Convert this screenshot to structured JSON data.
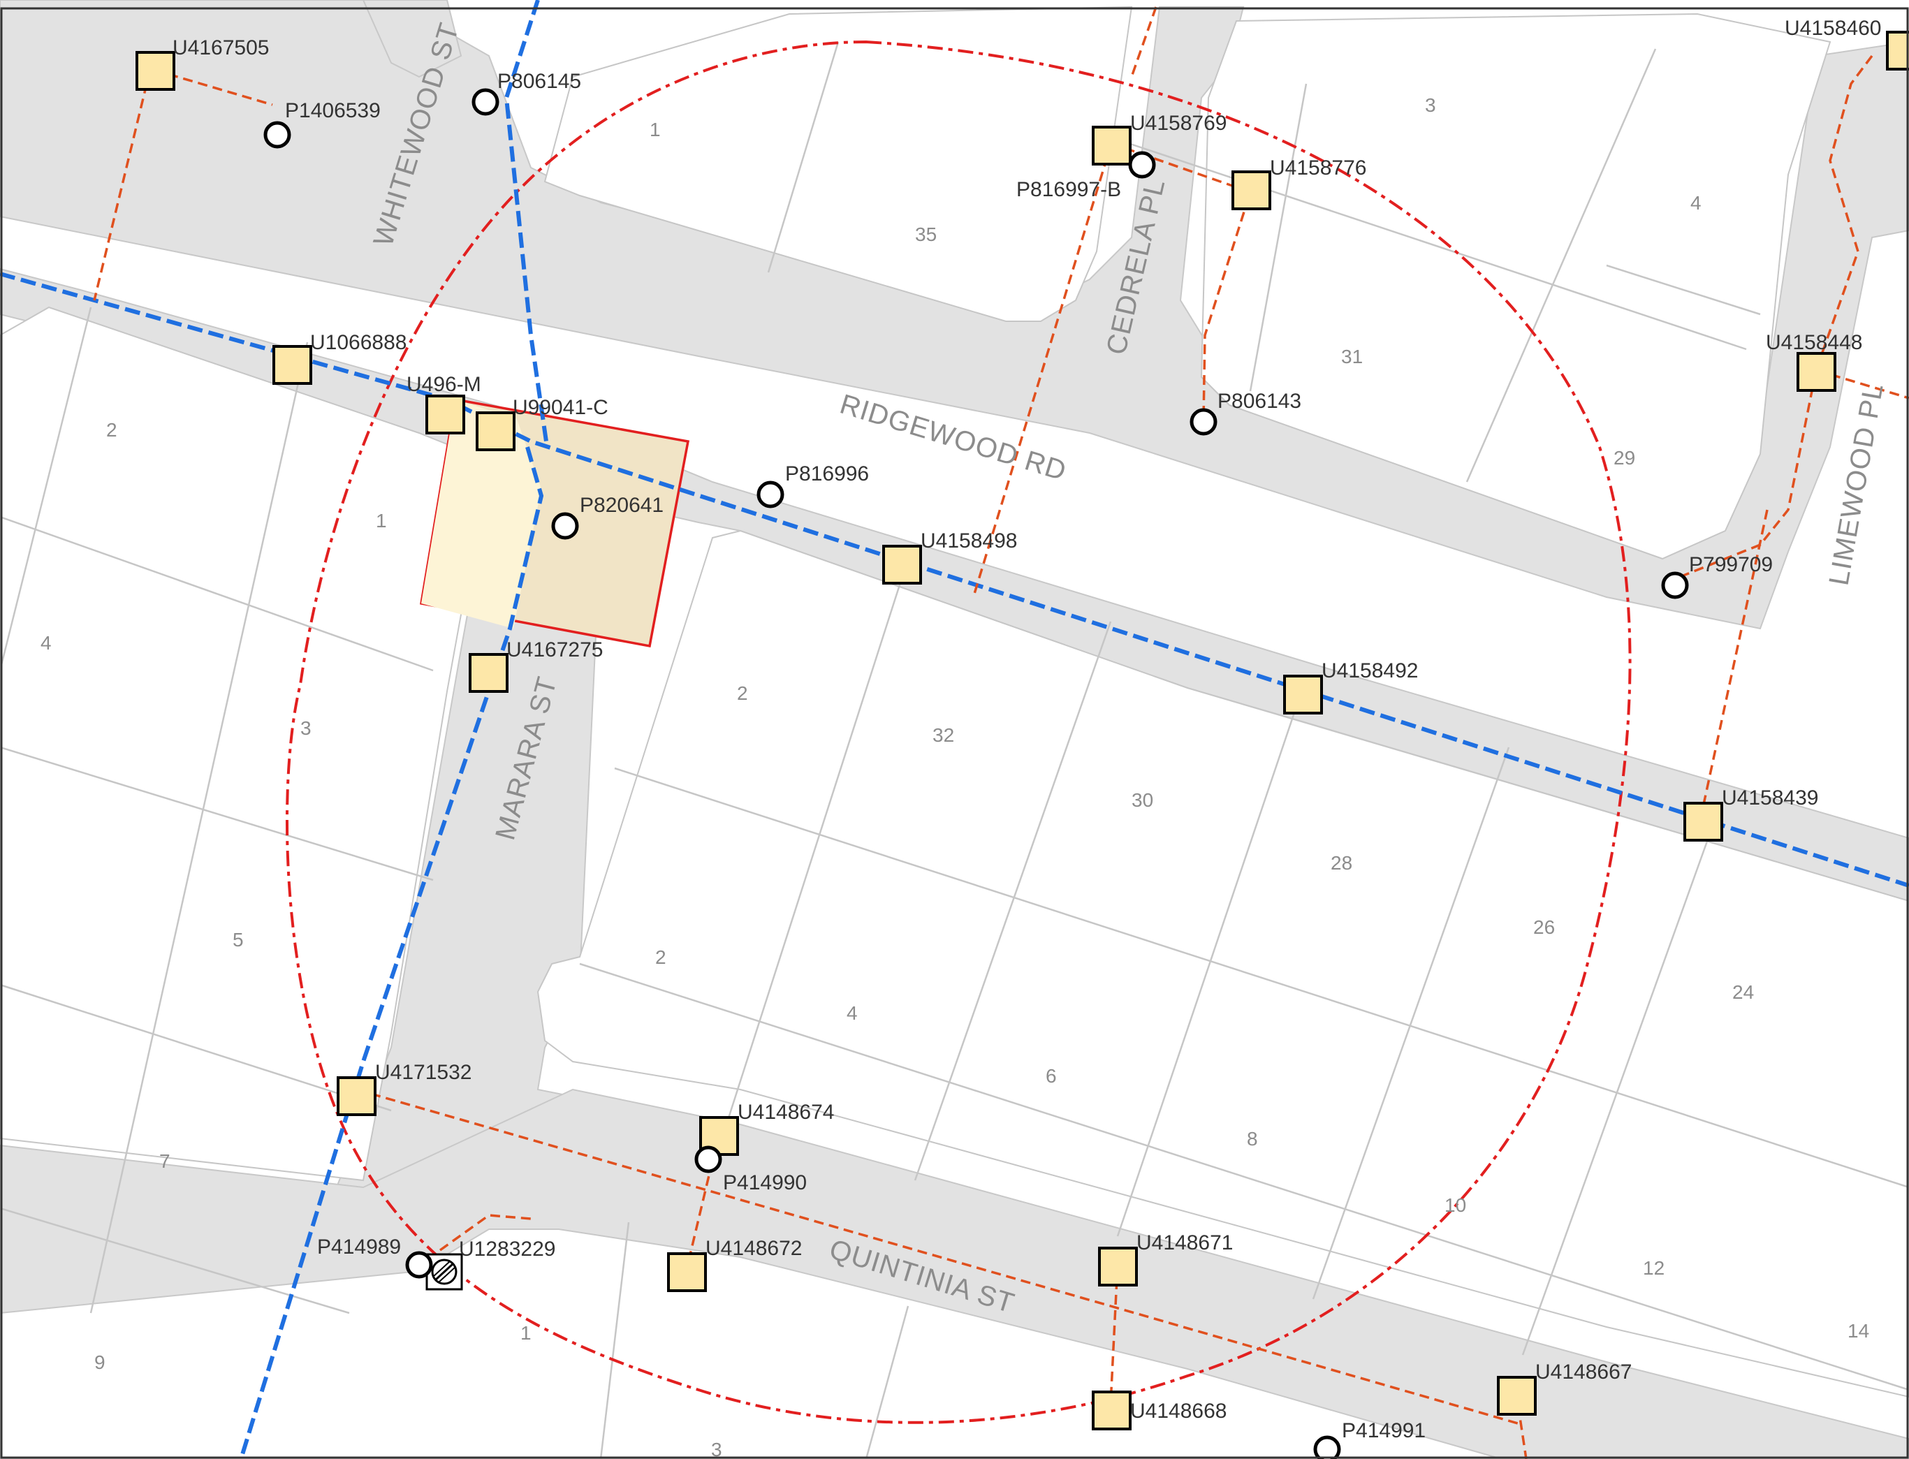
{
  "colors": {
    "road_fill": "#e2e2e2",
    "lot_line": "#c6c6c6",
    "water_main": "#1f6fe0",
    "service_line": "#e0501e",
    "buffer_ring": "#e21f1f",
    "asset_fill": "#fde7a8",
    "site_fill": "#f5e6c4"
  },
  "streets": {
    "whitewood": "WHITEWOOD ST",
    "ridgewood": "RIDGEWOOD RD",
    "cedrela": "CEDRELA PL",
    "limewood": "LIMEWOOD PL",
    "marara": "MARARA ST",
    "quintinia": "QUINTINIA ST"
  },
  "lots": {
    "l1": "1",
    "l3": "3",
    "l4": "4",
    "l35": "35",
    "l31": "31",
    "l29": "29",
    "l2a": "2",
    "l1b": "1",
    "l4a": "4",
    "l3a": "3",
    "l2b": "2",
    "l32": "32",
    "l30": "30",
    "l28": "28",
    "l26": "26",
    "l24": "24",
    "l5": "5",
    "l2c": "2",
    "l4b": "4",
    "l6": "6",
    "l8": "8",
    "l10": "10",
    "l12": "12",
    "l14": "14",
    "l7": "7",
    "l9": "9",
    "l1c": "1",
    "l3b": "3"
  },
  "assets": {
    "u4167505": "U4167505",
    "u4158460": "U4158460",
    "u4158769": "U4158769",
    "u4158776": "U4158776",
    "u1066888": "U1066888",
    "u4158448": "U4158448",
    "u496m": "U496-M",
    "u99041c": "U99041-C",
    "u4158498": "U4158498",
    "u4167275": "U4167275",
    "u4158492": "U4158492",
    "u4158439": "U4158439",
    "u4171532": "U4171532",
    "u4148674": "U4148674",
    "u4148672": "U4148672",
    "u4148671": "U4148671",
    "u4148667": "U4148667",
    "u4148668": "U4148668",
    "u1283229": "U1283229"
  },
  "points": {
    "p806145": "P806145",
    "p1406539": "P1406539",
    "p816997b": "P816997-B",
    "p806143": "P806143",
    "p816996": "P816996",
    "p820641": "P820641",
    "p799709": "P799709",
    "p414990": "P414990",
    "p414989": "P414989",
    "p414991": "P414991"
  }
}
